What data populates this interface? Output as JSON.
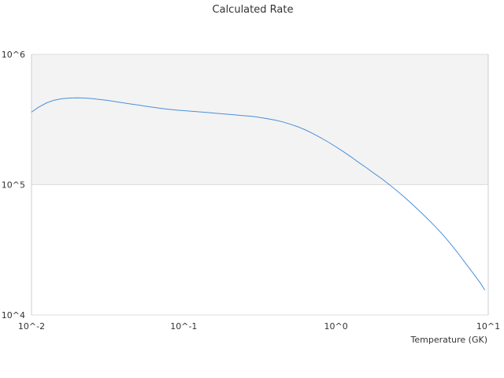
{
  "chart_data": {
    "type": "line",
    "title": "Calculated Rate",
    "xlabel": "Temperature (GK)",
    "ylabel": "",
    "x_scale": "log",
    "y_scale": "log",
    "xlim": [
      0.01,
      10
    ],
    "ylim": [
      10000,
      1000000
    ],
    "x_tick_labels": [
      "10^-2",
      "10^-1",
      "10^0",
      "10^1"
    ],
    "y_tick_labels": [
      "10^4",
      "10^5",
      "10^6"
    ],
    "grid": true,
    "legend": "none",
    "colors": {
      "line": "#4a90d9",
      "band": "#f3f3f3",
      "grid": "#dddddd",
      "frame": "#cccccc"
    },
    "series": [
      {
        "x": [
          0.01,
          0.0112,
          0.0126,
          0.0141,
          0.0158,
          0.0178,
          0.02,
          0.0224,
          0.0251,
          0.0282,
          0.0316,
          0.0355,
          0.0398,
          0.0447,
          0.0501,
          0.0562,
          0.0631,
          0.0708,
          0.0794,
          0.0891,
          0.1,
          0.112,
          0.126,
          0.141,
          0.158,
          0.178,
          0.2,
          0.224,
          0.251,
          0.282,
          0.316,
          0.355,
          0.398,
          0.447,
          0.501,
          0.562,
          0.631,
          0.708,
          0.794,
          0.891,
          1.0,
          1.12,
          1.26,
          1.41,
          1.58,
          1.78,
          2.0,
          2.24,
          2.51,
          2.82,
          3.16,
          3.55,
          3.98,
          4.47,
          5.01,
          5.62,
          6.31,
          7.08,
          7.94,
          8.91,
          9.5
        ],
        "y": [
          360000,
          395000,
          425000,
          445000,
          456000,
          462000,
          464000,
          462000,
          457000,
          450000,
          443000,
          434000,
          425000,
          416000,
          408000,
          400000,
          392000,
          385000,
          379000,
          374000,
          370000,
          366000,
          362000,
          358000,
          354000,
          350000,
          346000,
          342000,
          338000,
          334000,
          328000,
          321000,
          313000,
          303000,
          291000,
          278000,
          263000,
          246000,
          229000,
          212000,
          195000,
          179000,
          163000,
          148000,
          135000,
          122000,
          111000,
          100000,
          90000,
          80000,
          71000,
          62500,
          55000,
          48000,
          41500,
          35500,
          30000,
          25000,
          21000,
          17500,
          15500
        ]
      }
    ]
  }
}
